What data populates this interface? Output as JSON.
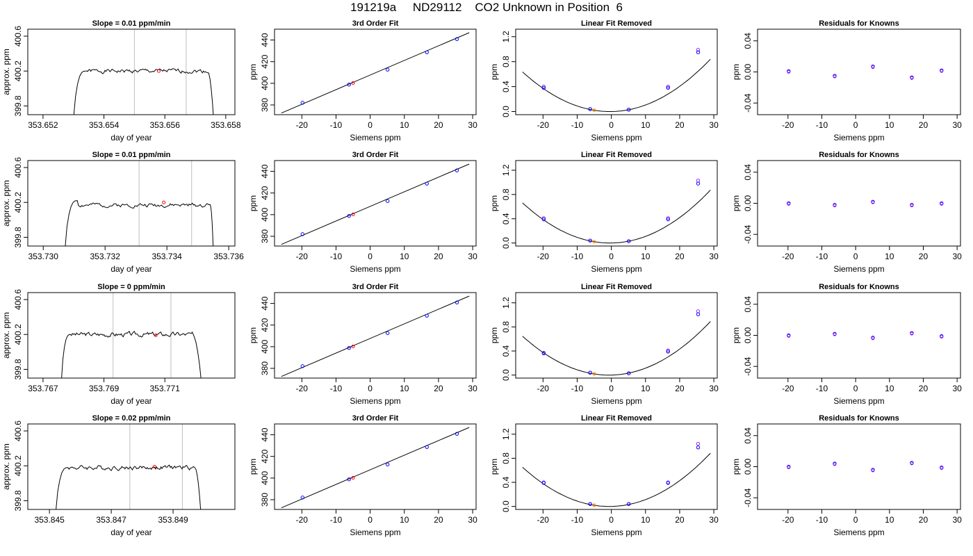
{
  "title": "191219a     ND29112    CO2 Unknown in Position  6",
  "colors": {
    "trace": "#000000",
    "unknown": "#ff0000",
    "known_blue": "#0000ff",
    "known_purple": "#a020f0",
    "fit_orange": "#ff8c00",
    "window_line": "#bebebe"
  },
  "chart_data": [
    {
      "type": "line",
      "title": "Slope =  0.01  ppm/min",
      "xlabel": "day of year",
      "ylabel": "approx. ppm",
      "xlim": [
        353.6515,
        353.6583
      ],
      "ylim": [
        399.7,
        400.68
      ],
      "xticks": [
        353.652,
        353.654,
        353.656,
        353.658
      ],
      "xtick_labels": [
        "353.652",
        "353.654",
        "353.656",
        "353.658"
      ],
      "yticks": [
        399.8,
        400.2,
        400.6
      ],
      "ytick_labels": [
        "399.8",
        "400.2",
        "400.6"
      ],
      "vlines": [
        353.655,
        353.6567
      ],
      "unknown_point": [
        353.6558,
        400.2
      ],
      "trace": {
        "x_start": 353.653,
        "x_rise_end": 353.6534,
        "x_fall_start": 353.6574,
        "x_end": 353.6576,
        "base": 399.7,
        "level": 400.2,
        "noise": 0.012,
        "seed": 1
      }
    },
    {
      "type": "scatter",
      "title": "3rd Order Fit",
      "xlabel": "Siemens ppm",
      "ylabel": "ppm",
      "xlim": [
        -28,
        31
      ],
      "ylim": [
        371,
        450
      ],
      "xticks": [
        -20,
        -10,
        0,
        10,
        20,
        30
      ],
      "xtick_labels": [
        "-20",
        "-10",
        "0",
        "10",
        "20",
        "30"
      ],
      "yticks": [
        380,
        400,
        420,
        440
      ],
      "ytick_labels": [
        "380",
        "400",
        "420",
        "440"
      ],
      "line": [
        [
          -26,
          372.5
        ],
        [
          29,
          446.8
        ]
      ],
      "knowns_x": [
        -19.8,
        -6.2,
        5.1,
        16.6,
        25.4
      ],
      "knowns_y": [
        382.0,
        398.8,
        412.6,
        428.7,
        440.9
      ],
      "unknown": [
        -5.0,
        400.2
      ]
    },
    {
      "type": "scatter",
      "title": "Linear Fit Removed",
      "xlabel": "Siemens ppm",
      "ylabel": "ppm",
      "xlim": [
        -28,
        31
      ],
      "ylim": [
        -0.05,
        1.32
      ],
      "xticks": [
        -20,
        -10,
        0,
        10,
        20,
        30
      ],
      "xtick_labels": [
        "-20",
        "-10",
        "0",
        "10",
        "20",
        "30"
      ],
      "yticks": [
        0.0,
        0.4,
        0.8,
        1.2
      ],
      "ytick_labels": [
        "0.0",
        "0.4",
        "0.8",
        "1.2"
      ],
      "curve": {
        "a": 0.00097,
        "b": 0.0008,
        "c": 0.0,
        "x_from": -26,
        "x_to": 29
      },
      "knowns_x": [
        -19.8,
        -6.2,
        5.1,
        16.6,
        25.4
      ],
      "knowns_y": [
        0.38,
        0.04,
        0.03,
        0.38,
        0.95
      ],
      "knowns_purple_y": [
        0.4,
        0.04,
        0.03,
        0.4,
        0.99
      ],
      "unknown": [
        -5.0,
        0.02
      ]
    },
    {
      "type": "scatter",
      "title": "Residuals for Knowns",
      "xlabel": "Siemens ppm",
      "ylabel": "ppm",
      "xlim": [
        -29,
        31
      ],
      "ylim": [
        -0.055,
        0.055
      ],
      "xticks": [
        -20,
        -10,
        0,
        10,
        20,
        30
      ],
      "xtick_labels": [
        "-20",
        "-10",
        "0",
        "10",
        "20",
        "30"
      ],
      "yticks": [
        -0.04,
        0.0,
        0.04
      ],
      "ytick_labels": [
        "-0.04",
        "0.00",
        "0.04"
      ],
      "knowns_x": [
        -19.8,
        -6.2,
        5.1,
        16.6,
        25.4
      ],
      "knowns_y": [
        0.001,
        -0.005,
        0.007,
        -0.007,
        0.002
      ]
    },
    {
      "type": "line",
      "title": "Slope =  0.01  ppm/min",
      "xlabel": "day of year",
      "ylabel": "approx. ppm",
      "xlim": [
        353.7295,
        353.7362
      ],
      "ylim": [
        399.7,
        400.68
      ],
      "xticks": [
        353.73,
        353.732,
        353.734,
        353.736
      ],
      "xtick_labels": [
        "353.730",
        "353.732",
        "353.734",
        "353.736"
      ],
      "yticks": [
        399.8,
        400.2,
        400.6
      ],
      "ytick_labels": [
        "399.8",
        "400.2",
        "400.6"
      ],
      "vlines": [
        353.7331,
        353.7348
      ],
      "unknown_point": [
        353.7339,
        400.2
      ],
      "trace": {
        "x_start": 353.7307,
        "x_rise_end": 353.7311,
        "x_fall_start": 353.7354,
        "x_end": 353.7355,
        "base": 399.7,
        "level": 400.17,
        "noise": 0.012,
        "seed": 2,
        "rise_to": 400.22
      }
    },
    {
      "type": "scatter",
      "title": "3rd Order Fit",
      "xlabel": "Siemens ppm",
      "ylabel": "ppm",
      "xlim": [
        -28,
        31
      ],
      "ylim": [
        371,
        450
      ],
      "xticks": [
        -20,
        -10,
        0,
        10,
        20,
        30
      ],
      "xtick_labels": [
        "-20",
        "-10",
        "0",
        "10",
        "20",
        "30"
      ],
      "yticks": [
        380,
        400,
        420,
        440
      ],
      "ytick_labels": [
        "380",
        "400",
        "420",
        "440"
      ],
      "line": [
        [
          -26,
          372.5
        ],
        [
          29,
          446.8
        ]
      ],
      "knowns_x": [
        -19.8,
        -6.2,
        5.1,
        16.6,
        25.4
      ],
      "knowns_y": [
        382.0,
        398.8,
        412.6,
        428.7,
        440.9
      ],
      "unknown": [
        -5.0,
        400.2
      ]
    },
    {
      "type": "scatter",
      "title": "Linear Fit Removed",
      "xlabel": "Siemens ppm",
      "ylabel": "ppm",
      "xlim": [
        -28,
        31
      ],
      "ylim": [
        -0.05,
        1.36
      ],
      "xticks": [
        -20,
        -10,
        0,
        10,
        20,
        30
      ],
      "xtick_labels": [
        "-20",
        "-10",
        "0",
        "10",
        "20",
        "30"
      ],
      "yticks": [
        0.0,
        0.4,
        0.8,
        1.2
      ],
      "ytick_labels": [
        "0.0",
        "0.4",
        "0.8",
        "1.2"
      ],
      "curve": {
        "a": 0.00101,
        "b": 0.0008,
        "c": 0.0,
        "x_from": -26,
        "x_to": 29
      },
      "knowns_x": [
        -19.8,
        -6.2,
        5.1,
        16.6,
        25.4
      ],
      "knowns_y": [
        0.39,
        0.04,
        0.03,
        0.39,
        0.98
      ],
      "knowns_purple_y": [
        0.41,
        0.04,
        0.03,
        0.41,
        1.03
      ],
      "unknown": [
        -5.0,
        0.02
      ]
    },
    {
      "type": "scatter",
      "title": "Residuals for Knowns",
      "xlabel": "Siemens ppm",
      "ylabel": "ppm",
      "xlim": [
        -29,
        31
      ],
      "ylim": [
        -0.055,
        0.055
      ],
      "xticks": [
        -20,
        -10,
        0,
        10,
        20,
        30
      ],
      "xtick_labels": [
        "-20",
        "-10",
        "0",
        "10",
        "20",
        "30"
      ],
      "yticks": [
        -0.04,
        0.0,
        0.04
      ],
      "ytick_labels": [
        "-0.04",
        "0.00",
        "0.04"
      ],
      "knowns_x": [
        -19.8,
        -6.2,
        5.1,
        16.6,
        25.4
      ],
      "knowns_y": [
        0.0,
        -0.002,
        0.002,
        -0.002,
        0.0
      ]
    },
    {
      "type": "line",
      "title": "Slope =  0  ppm/min",
      "xlabel": "day of year",
      "ylabel": "approx. ppm",
      "xlim": [
        353.7665,
        353.7733
      ],
      "ylim": [
        399.7,
        400.68
      ],
      "xticks": [
        353.767,
        353.769,
        353.771
      ],
      "xtick_labels": [
        "353.767",
        "353.769",
        "353.771"
      ],
      "yticks": [
        399.8,
        400.2,
        400.6
      ],
      "ytick_labels": [
        "399.8",
        "400.2",
        "400.6"
      ],
      "vlines": [
        353.7693,
        353.7712
      ],
      "unknown_point": [
        353.7707,
        400.19
      ],
      "trace": {
        "x_start": 353.7676,
        "x_rise_end": 353.7679,
        "x_fall_start": 353.7719,
        "x_end": 353.7722,
        "base": 399.7,
        "level": 400.2,
        "noise": 0.014,
        "seed": 3
      }
    },
    {
      "type": "scatter",
      "title": "3rd Order Fit",
      "xlabel": "Siemens ppm",
      "ylabel": "ppm",
      "xlim": [
        -28,
        31
      ],
      "ylim": [
        371,
        450
      ],
      "xticks": [
        -20,
        -10,
        0,
        10,
        20,
        30
      ],
      "xtick_labels": [
        "-20",
        "-10",
        "0",
        "10",
        "20",
        "30"
      ],
      "yticks": [
        380,
        400,
        420,
        440
      ],
      "ytick_labels": [
        "380",
        "400",
        "420",
        "440"
      ],
      "line": [
        [
          -26,
          372.5
        ],
        [
          29,
          446.8
        ]
      ],
      "knowns_x": [
        -19.8,
        -6.2,
        5.1,
        16.6,
        25.4
      ],
      "knowns_y": [
        382.0,
        398.8,
        412.6,
        428.7,
        440.9
      ],
      "unknown": [
        -5.0,
        400.2
      ]
    },
    {
      "type": "scatter",
      "title": "Linear Fit Removed",
      "xlabel": "Siemens ppm",
      "ylabel": "ppm",
      "xlim": [
        -28,
        31
      ],
      "ylim": [
        -0.05,
        1.37
      ],
      "xticks": [
        -20,
        -10,
        0,
        10,
        20,
        30
      ],
      "xtick_labels": [
        "-20",
        "-10",
        "0",
        "10",
        "20",
        "30"
      ],
      "yticks": [
        0.0,
        0.4,
        0.8,
        1.2
      ],
      "ytick_labels": [
        "0.0",
        "0.4",
        "0.8",
        "1.2"
      ],
      "curve": {
        "a": 0.00101,
        "b": 0.0014,
        "c": 0.0,
        "x_from": -26,
        "x_to": 29
      },
      "knowns_x": [
        -19.8,
        -6.2,
        5.1,
        16.6,
        25.4
      ],
      "knowns_y": [
        0.36,
        0.04,
        0.03,
        0.39,
        1.01
      ],
      "knowns_purple_y": [
        0.37,
        0.04,
        0.03,
        0.41,
        1.06
      ],
      "unknown": [
        -5.0,
        0.02
      ]
    },
    {
      "type": "scatter",
      "title": "Residuals for Knowns",
      "xlabel": "Siemens ppm",
      "ylabel": "ppm",
      "xlim": [
        -29,
        31
      ],
      "ylim": [
        -0.055,
        0.055
      ],
      "xticks": [
        -20,
        -10,
        0,
        10,
        20,
        30
      ],
      "xtick_labels": [
        "-20",
        "-10",
        "0",
        "10",
        "20",
        "30"
      ],
      "yticks": [
        -0.04,
        0.0,
        0.04
      ],
      "ytick_labels": [
        "-0.04",
        "0.00",
        "0.04"
      ],
      "knowns_x": [
        -19.8,
        -6.2,
        5.1,
        16.6,
        25.4
      ],
      "knowns_y": [
        0.0,
        0.002,
        -0.003,
        0.003,
        -0.001
      ]
    },
    {
      "type": "line",
      "title": "Slope =  0.02  ppm/min",
      "xlabel": "day of year",
      "ylabel": "approx. ppm",
      "xlim": [
        353.8443,
        353.851
      ],
      "ylim": [
        399.7,
        400.68
      ],
      "xticks": [
        353.845,
        353.847,
        353.849
      ],
      "xtick_labels": [
        "353.845",
        "353.847",
        "353.849"
      ],
      "yticks": [
        399.8,
        400.2,
        400.6
      ],
      "ytick_labels": [
        "399.8",
        "400.2",
        "400.6"
      ],
      "vlines": [
        353.8476,
        353.8493
      ],
      "unknown_point": [
        353.8484,
        400.19
      ],
      "trace": {
        "x_start": 353.8452,
        "x_rise_end": 353.8456,
        "x_fall_start": 353.8497,
        "x_end": 353.8499,
        "base": 399.7,
        "level": 400.18,
        "noise": 0.014,
        "seed": 4
      }
    },
    {
      "type": "scatter",
      "title": "3rd Order Fit",
      "xlabel": "Siemens ppm",
      "ylabel": "ppm",
      "xlim": [
        -28,
        31
      ],
      "ylim": [
        371,
        450
      ],
      "xticks": [
        -20,
        -10,
        0,
        10,
        20,
        30
      ],
      "xtick_labels": [
        "-20",
        "-10",
        "0",
        "10",
        "20",
        "30"
      ],
      "yticks": [
        380,
        400,
        420,
        440
      ],
      "ytick_labels": [
        "380",
        "400",
        "420",
        "440"
      ],
      "line": [
        [
          -26,
          372.5
        ],
        [
          29,
          446.8
        ]
      ],
      "knowns_x": [
        -19.8,
        -6.2,
        5.1,
        16.6,
        25.4
      ],
      "knowns_y": [
        382.0,
        398.8,
        412.6,
        428.7,
        440.9
      ],
      "unknown": [
        -5.0,
        400.2
      ]
    },
    {
      "type": "scatter",
      "title": "Linear Fit Removed",
      "xlabel": "Siemens ppm",
      "ylabel": "ppm",
      "xlim": [
        -28,
        31
      ],
      "ylim": [
        -0.05,
        1.37
      ],
      "xticks": [
        -20,
        -10,
        0,
        10,
        20,
        30
      ],
      "xtick_labels": [
        "-20",
        "-10",
        "0",
        "10",
        "20",
        "30"
      ],
      "yticks": [
        0.0,
        0.4,
        0.8,
        1.2
      ],
      "ytick_labels": [
        "0.0",
        "0.4",
        "0.8",
        "1.2"
      ],
      "curve": {
        "a": 0.00101,
        "b": 0.0012,
        "c": 0.0,
        "x_from": -26,
        "x_to": 29
      },
      "knowns_x": [
        -19.8,
        -6.2,
        5.1,
        16.6,
        25.4
      ],
      "knowns_y": [
        0.39,
        0.04,
        0.04,
        0.39,
        0.98
      ],
      "knowns_purple_y": [
        0.4,
        0.04,
        0.04,
        0.4,
        1.04
      ],
      "unknown": [
        -5.0,
        0.02
      ]
    },
    {
      "type": "scatter",
      "title": "Residuals for Knowns",
      "xlabel": "Siemens ppm",
      "ylabel": "ppm",
      "xlim": [
        -29,
        31
      ],
      "ylim": [
        -0.055,
        0.055
      ],
      "xticks": [
        -20,
        -10,
        0,
        10,
        20,
        30
      ],
      "xtick_labels": [
        "-20",
        "-10",
        "0",
        "10",
        "20",
        "30"
      ],
      "yticks": [
        -0.04,
        0.0,
        0.04
      ],
      "ytick_labels": [
        "-0.04",
        "0.00",
        "0.04"
      ],
      "knowns_x": [
        -19.8,
        -6.2,
        5.1,
        16.6,
        25.4
      ],
      "knowns_y": [
        0.0,
        0.004,
        -0.004,
        0.005,
        -0.001
      ]
    }
  ]
}
